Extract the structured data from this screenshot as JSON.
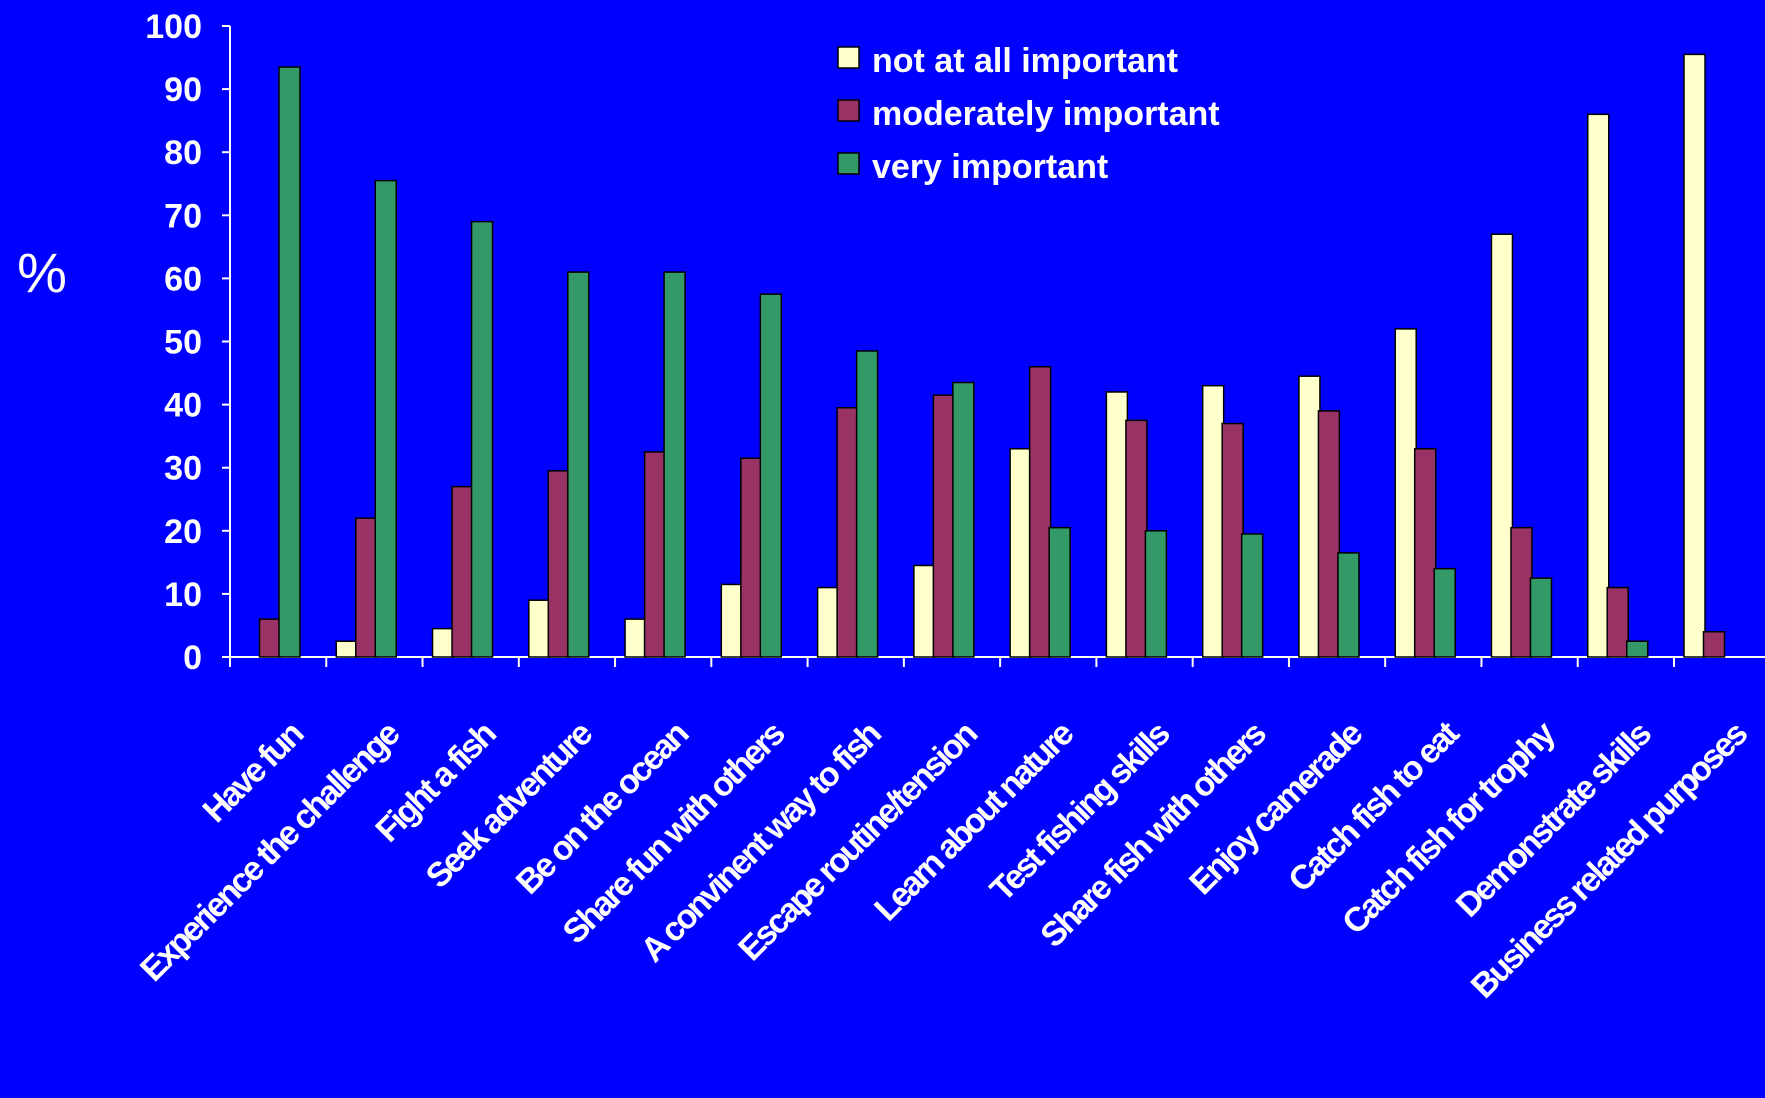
{
  "chart_data": {
    "type": "bar",
    "ylabel": "%",
    "ylim": [
      0,
      100
    ],
    "yticks": [
      0,
      10,
      20,
      30,
      40,
      50,
      60,
      70,
      80,
      90,
      100
    ],
    "grid": false,
    "legend_position": "top-center",
    "colors": {
      "background": "#0000FF",
      "text": "#FFFFFF",
      "axis": "#FFFFFF",
      "bar_edge": "#000000"
    },
    "categories": [
      "Have fun",
      "Experience the challenge",
      "Fight a fish",
      "Seek adventure",
      "Be on the ocean",
      "Share fun with others",
      "A convinent way to fish",
      "Escape routine/tension",
      "Learn about nature",
      "Test fishing skills",
      "Share fish with others",
      "Enjoy camerade",
      "Catch fish to eat",
      "Catch fish for trophy",
      "Demonstrate skills",
      "Business related purposes"
    ],
    "series": [
      {
        "name": "not at all important",
        "color": "#FFFFCC",
        "values": [
          0,
          2.5,
          4.5,
          9,
          6,
          11.5,
          11,
          14.5,
          33,
          42,
          43,
          44.5,
          52,
          67,
          86,
          95.5
        ]
      },
      {
        "name": "moderately important",
        "color": "#993366",
        "values": [
          6,
          22,
          27,
          29.5,
          32.5,
          31.5,
          39.5,
          41.5,
          46,
          37.5,
          37,
          39,
          33,
          20.5,
          11,
          4
        ]
      },
      {
        "name": "very important",
        "color": "#339966",
        "values": [
          93.5,
          75.5,
          69,
          61,
          61,
          57.5,
          48.5,
          43.5,
          20.5,
          20,
          19.5,
          16.5,
          14,
          12.5,
          2.5,
          null
        ]
      }
    ]
  }
}
